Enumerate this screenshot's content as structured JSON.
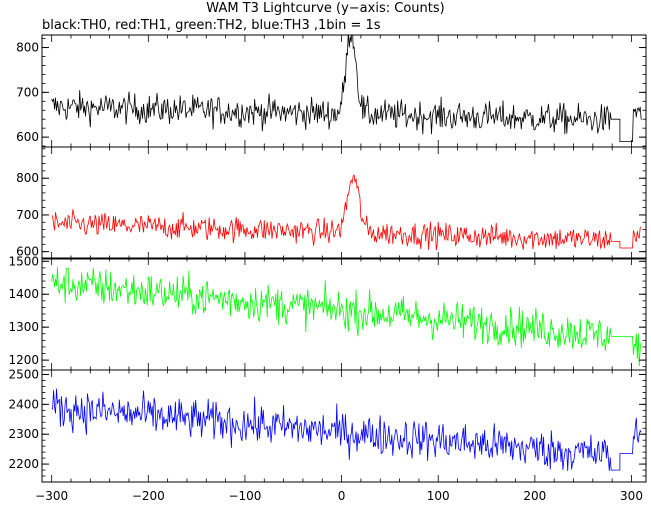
{
  "title": "WAM T3 Lightcurve (y−axis: Counts)",
  "subtitle": "black:TH0, red:TH1, green:TH2, blue:TH3 ,1bin = 1s",
  "chart_data": {
    "type": "line",
    "x_range": [
      -310,
      315
    ],
    "x_ticks": [
      -300,
      -200,
      -100,
      0,
      100,
      200,
      300
    ],
    "x_tick_labels": [
      "−300",
      "−200",
      "−100",
      "0",
      "100",
      "200",
      "300"
    ],
    "data_gap": [
      278,
      302
    ],
    "panels": [
      {
        "channel": "TH0",
        "color": "#000000",
        "ylim": [
          578,
          828
        ],
        "y_ticks": [
          600,
          700,
          800
        ],
        "start_level": 668,
        "end_level": 638,
        "noise": 24,
        "peaks": [
          {
            "x": 10,
            "height": 190,
            "width": 5
          }
        ],
        "gap_level": 640,
        "gap_low_level": 590,
        "tail_level": 660
      },
      {
        "channel": "TH1",
        "color": "#ff0000",
        "ylim": [
          580,
          885
        ],
        "y_ticks": [
          600,
          700,
          800
        ],
        "start_level": 676,
        "end_level": 632,
        "noise": 24,
        "peaks": [
          {
            "x": 12,
            "height": 150,
            "width": 6
          }
        ],
        "gap_level": 628,
        "gap_low_level": 610,
        "tail_level": 650
      },
      {
        "channel": "TH2",
        "color": "#00ff00",
        "ylim": [
          1170,
          1510
        ],
        "y_ticks": [
          1200,
          1300,
          1400,
          1500
        ],
        "start_level": 1435,
        "end_level": 1275,
        "noise": 42,
        "peaks": [],
        "gap_level": 1272,
        "gap_low_level": 1272,
        "tail_level": 1240
      },
      {
        "channel": "TH3",
        "color": "#0000ff",
        "ylim": [
          2140,
          2515
        ],
        "y_ticks": [
          2200,
          2300,
          2400,
          2500
        ],
        "start_level": 2390,
        "end_level": 2230,
        "noise": 48,
        "peaks": [],
        "gap_level": 2180,
        "gap_low_level": 2235,
        "tail_level": 2300
      }
    ]
  }
}
